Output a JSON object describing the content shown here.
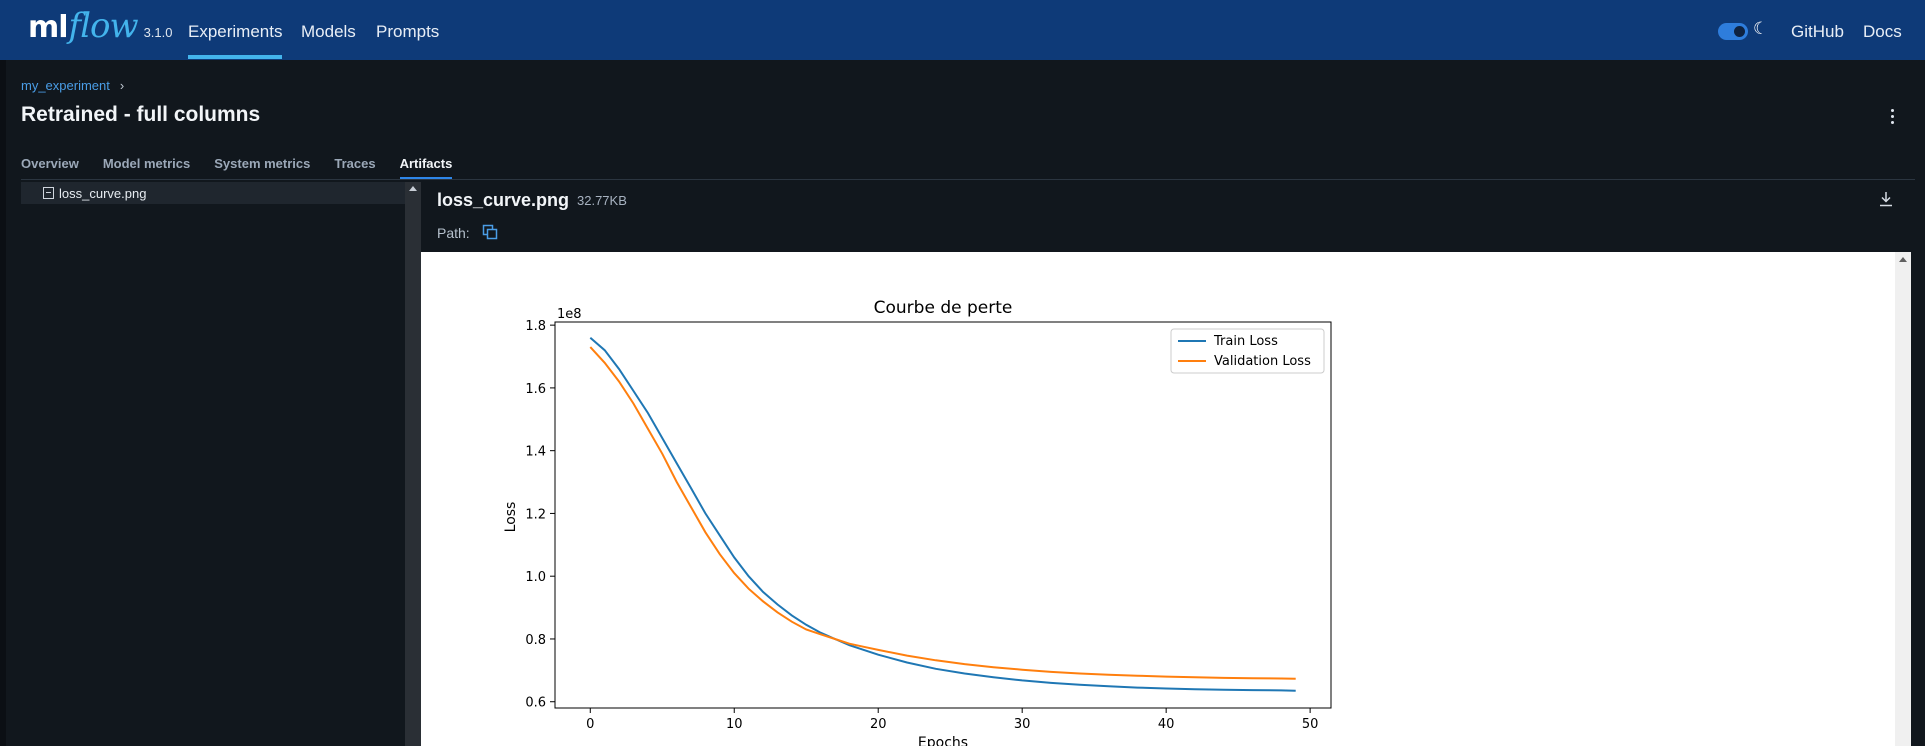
{
  "header": {
    "logo_ml": "ml",
    "logo_flow": "flow",
    "version": "3.1.0",
    "nav": [
      "Experiments",
      "Models",
      "Prompts"
    ],
    "active_nav": "Experiments",
    "dark_mode": true,
    "github_label": "GitHub",
    "docs_label": "Docs",
    "colors": {
      "bar": "#0e3a78",
      "accent": "#43b4ec"
    }
  },
  "breadcrumb": {
    "experiment": "my_experiment",
    "separator": "›"
  },
  "page_title": "Retrained - full columns",
  "tabs": [
    "Overview",
    "Model metrics",
    "System metrics",
    "Traces",
    "Artifacts"
  ],
  "active_tab": "Artifacts",
  "artifacts": {
    "tree": [
      {
        "name": "loss_curve.png",
        "icon": "image-file-icon",
        "selected": true
      }
    ],
    "file_name": "loss_curve.png",
    "file_size": "32.77KB",
    "path_label": "Path:"
  },
  "chart_data": {
    "type": "line",
    "title": "Courbe de perte",
    "xlabel": "Epochs",
    "ylabel": "Loss",
    "y_scale_label": "1e8",
    "xlim": [
      -2.45,
      51.45
    ],
    "ylim": [
      0.58,
      1.81
    ],
    "xticks": [
      0,
      10,
      20,
      30,
      40,
      50
    ],
    "yticks": [
      0.6,
      0.8,
      1.0,
      1.2,
      1.4,
      1.6,
      1.8
    ],
    "ytick_labels": [
      "0.6",
      "0.8",
      "1.0",
      "1.2",
      "1.4",
      "1.6",
      "1.8"
    ],
    "legend_position": "top-right",
    "grid": false,
    "series": [
      {
        "name": "Train Loss",
        "color": "#1f77b4",
        "x": [
          0,
          1,
          2,
          3,
          4,
          5,
          6,
          7,
          8,
          9,
          10,
          11,
          12,
          13,
          14,
          15,
          16,
          17,
          18,
          19,
          20,
          22,
          24,
          26,
          28,
          30,
          32,
          34,
          36,
          38,
          40,
          42,
          44,
          46,
          48,
          49
        ],
        "y": [
          1.76,
          1.72,
          1.66,
          1.59,
          1.52,
          1.44,
          1.36,
          1.28,
          1.2,
          1.13,
          1.06,
          1.0,
          0.95,
          0.91,
          0.875,
          0.845,
          0.82,
          0.8,
          0.78,
          0.765,
          0.75,
          0.725,
          0.705,
          0.69,
          0.678,
          0.668,
          0.66,
          0.654,
          0.649,
          0.645,
          0.642,
          0.64,
          0.638,
          0.637,
          0.636,
          0.635
        ]
      },
      {
        "name": "Validation Loss",
        "color": "#ff7f0e",
        "x": [
          0,
          1,
          2,
          3,
          4,
          5,
          6,
          7,
          8,
          9,
          10,
          11,
          12,
          13,
          14,
          15,
          16,
          17,
          18,
          19,
          20,
          22,
          24,
          26,
          28,
          30,
          32,
          34,
          36,
          38,
          40,
          42,
          44,
          46,
          48,
          49
        ],
        "y": [
          1.73,
          1.68,
          1.62,
          1.55,
          1.47,
          1.39,
          1.3,
          1.22,
          1.14,
          1.07,
          1.01,
          0.96,
          0.92,
          0.885,
          0.855,
          0.83,
          0.815,
          0.8,
          0.785,
          0.775,
          0.765,
          0.747,
          0.732,
          0.72,
          0.71,
          0.702,
          0.695,
          0.69,
          0.686,
          0.683,
          0.68,
          0.678,
          0.676,
          0.675,
          0.674,
          0.673
        ]
      }
    ]
  }
}
